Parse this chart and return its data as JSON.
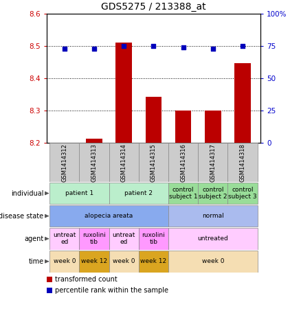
{
  "title": "GDS5275 / 213388_at",
  "samples": [
    "GSM1414312",
    "GSM1414313",
    "GSM1414314",
    "GSM1414315",
    "GSM1414316",
    "GSM1414317",
    "GSM1414318"
  ],
  "bar_values": [
    8.201,
    8.213,
    8.512,
    8.343,
    8.3,
    8.3,
    8.448
  ],
  "dot_values": [
    73,
    73,
    75,
    75,
    74,
    73,
    75
  ],
  "ylim_left": [
    8.2,
    8.6
  ],
  "ylim_right": [
    0,
    100
  ],
  "yticks_left": [
    8.2,
    8.3,
    8.4,
    8.5,
    8.6
  ],
  "yticks_right": [
    0,
    25,
    50,
    75,
    100
  ],
  "bar_color": "#bb0000",
  "dot_color": "#0000bb",
  "bar_width": 0.55,
  "individual_cells": [
    {
      "label": "patient 1",
      "cols": [
        0,
        1
      ],
      "color": "#bbeecc"
    },
    {
      "label": "patient 2",
      "cols": [
        2,
        3
      ],
      "color": "#bbeecc"
    },
    {
      "label": "control\nsubject 1",
      "cols": [
        4
      ],
      "color": "#99dd99"
    },
    {
      "label": "control\nsubject 2",
      "cols": [
        5
      ],
      "color": "#99dd99"
    },
    {
      "label": "control\nsubject 3",
      "cols": [
        6
      ],
      "color": "#99dd99"
    }
  ],
  "disease_cells": [
    {
      "label": "alopecia areata",
      "cols": [
        0,
        1,
        2,
        3
      ],
      "color": "#88aaee"
    },
    {
      "label": "normal",
      "cols": [
        4,
        5,
        6
      ],
      "color": "#aabbee"
    }
  ],
  "agent_cells": [
    {
      "label": "untreat\ned",
      "cols": [
        0
      ],
      "color": "#ffccff"
    },
    {
      "label": "ruxolini\ntib",
      "cols": [
        1
      ],
      "color": "#ff99ff"
    },
    {
      "label": "untreat\ned",
      "cols": [
        2
      ],
      "color": "#ffccff"
    },
    {
      "label": "ruxolini\ntib",
      "cols": [
        3
      ],
      "color": "#ff99ff"
    },
    {
      "label": "untreated",
      "cols": [
        4,
        5,
        6
      ],
      "color": "#ffccff"
    }
  ],
  "time_cells": [
    {
      "label": "week 0",
      "cols": [
        0
      ],
      "color": "#f5deb3"
    },
    {
      "label": "week 12",
      "cols": [
        1
      ],
      "color": "#daa520"
    },
    {
      "label": "week 0",
      "cols": [
        2
      ],
      "color": "#f5deb3"
    },
    {
      "label": "week 12",
      "cols": [
        3
      ],
      "color": "#daa520"
    },
    {
      "label": "week 0",
      "cols": [
        4,
        5,
        6
      ],
      "color": "#f5deb3"
    }
  ],
  "row_labels": [
    "individual",
    "disease state",
    "agent",
    "time"
  ],
  "legend_items": [
    {
      "label": "transformed count",
      "color": "#bb0000",
      "marker": "s"
    },
    {
      "label": "percentile rank within the sample",
      "color": "#0000bb",
      "marker": "s"
    }
  ],
  "tick_label_color_left": "#cc0000",
  "tick_label_color_right": "#0000cc",
  "sample_box_color": "#cccccc",
  "sample_box_edge": "#888888"
}
